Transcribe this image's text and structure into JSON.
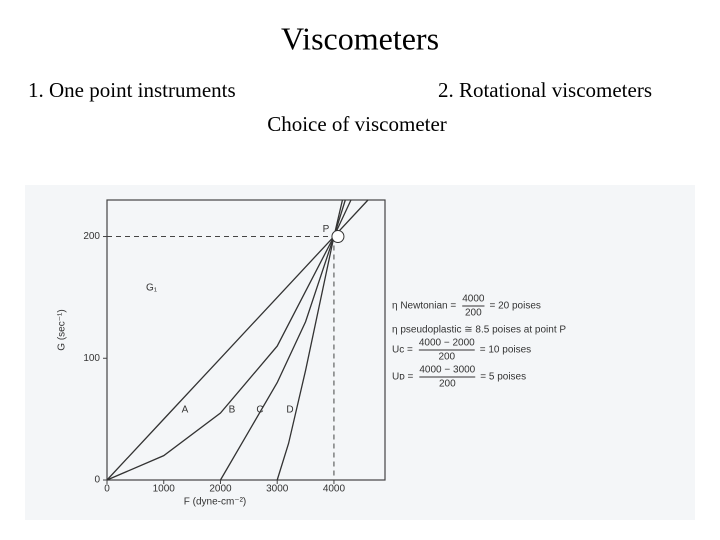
{
  "header": {
    "title": "Viscometers",
    "left_item": "1. One point instruments",
    "right_item": "2. Rotational viscometers",
    "subtitle": "Choice of viscometer"
  },
  "chart_data": {
    "type": "line",
    "xlabel": "F (dyne-cm⁻²)",
    "ylabel": "G (sec⁻¹)",
    "xlim": [
      0,
      4900
    ],
    "ylim": [
      0,
      230
    ],
    "xticks": [
      0,
      1000,
      2000,
      3000,
      4000
    ],
    "yticks": [
      0,
      100,
      200
    ],
    "color": "#333333",
    "series": [
      {
        "name": "A",
        "x": [
          0,
          1000,
          2000,
          3000,
          4000,
          4600
        ],
        "values": [
          0,
          50,
          100,
          150,
          200,
          230
        ]
      },
      {
        "name": "B",
        "x": [
          0,
          1000,
          2000,
          3000,
          4000,
          4300
        ],
        "values": [
          0,
          20,
          55,
          110,
          200,
          230
        ]
      },
      {
        "name": "C",
        "x": [
          2000,
          2500,
          3000,
          3500,
          4000,
          4200
        ],
        "values": [
          0,
          40,
          80,
          130,
          200,
          230
        ]
      },
      {
        "name": "D",
        "x": [
          3000,
          3200,
          3500,
          4000,
          4150
        ],
        "values": [
          0,
          30,
          90,
          200,
          230
        ]
      }
    ],
    "point": {
      "label": "P",
      "x": 4000,
      "y": 200,
      "axis_label": "G₁"
    },
    "annotations": [
      {
        "lhs": "η Newtonian =",
        "num": "4000",
        "den": "200",
        "rhs": "= 20 poises"
      },
      {
        "lhs": "η pseudoplastic ≅ 8.5 poises at point P"
      },
      {
        "lhs": "Uᴄ =",
        "num": "4000 − 2000",
        "den": "200",
        "rhs": "= 10 poises"
      },
      {
        "lhs": "Uᴅ =",
        "num": "4000 − 3000",
        "den": "200",
        "rhs": "= 5 poises"
      }
    ]
  }
}
